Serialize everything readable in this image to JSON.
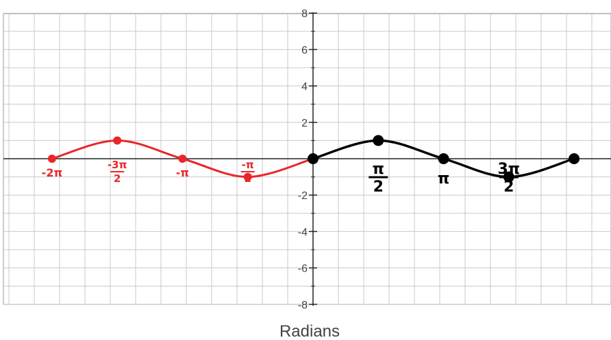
{
  "chart_data": {
    "type": "line",
    "title": "",
    "xlabel": "Radians",
    "ylabel": "",
    "xlim": [
      -7.2,
      7.2
    ],
    "ylim": [
      -8,
      8
    ],
    "x_grid_step": 0.61,
    "y_grid_step": 1,
    "grid": true,
    "y_ticks": [
      -8,
      -6,
      -4,
      -2,
      2,
      4,
      6,
      8
    ],
    "y_tick_labels": [
      "-8",
      "-6",
      "-4",
      "-2",
      "2",
      "4",
      "6",
      "8"
    ],
    "series": [
      {
        "color": "#e8262a",
        "x": [
          -6.283,
          -4.712,
          -3.142,
          -1.571,
          0
        ],
        "y": [
          0,
          1,
          0,
          -1,
          0
        ]
      },
      {
        "color": "#000000",
        "x": [
          0,
          1.571,
          3.142,
          4.712,
          6.283
        ],
        "y": [
          0,
          1,
          0,
          -1,
          0
        ]
      }
    ],
    "annotations": [
      {
        "text": "-2π",
        "x": -6.283,
        "color": "#e8262a"
      },
      {
        "text": "-3π/2",
        "x": -4.712,
        "color": "#e8262a"
      },
      {
        "text": "-π",
        "x": -3.142,
        "color": "#e8262a"
      },
      {
        "text": "-π/2",
        "x": -1.571,
        "color": "#e8262a"
      },
      {
        "text": "π/2",
        "x": 1.571,
        "color": "#000000"
      },
      {
        "text": "π",
        "x": 3.142,
        "color": "#000000"
      },
      {
        "text": "3π/2",
        "x": 4.712,
        "color": "#000000"
      }
    ]
  }
}
